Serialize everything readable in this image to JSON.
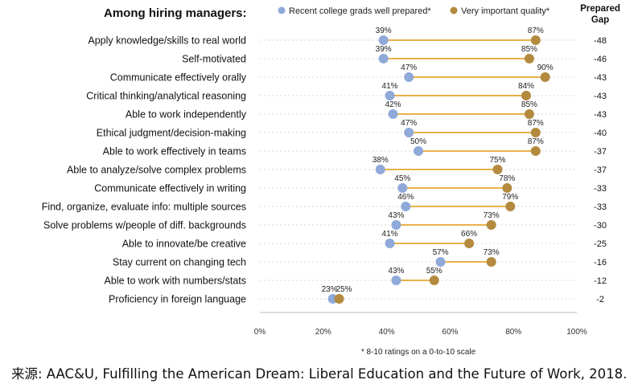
{
  "chart_data": {
    "type": "dumbbell",
    "title": "Among hiring managers:",
    "legend": {
      "prepared": "Recent college grads well prepared*",
      "important": "Very important quality*",
      "placement": "top"
    },
    "gap_header": [
      "Prepared",
      "Gap"
    ],
    "x_ticks": [
      "0%",
      "20%",
      "40%",
      "60%",
      "80%",
      "100%"
    ],
    "xlim": [
      0,
      100
    ],
    "footnote": "* 8-10 ratings on a 0-to-10 scale",
    "colors": {
      "prepared": "#8fa9d9",
      "important": "#b38a3e",
      "line": "#e8b14a",
      "grid": "#c9c9c9"
    },
    "rows": [
      {
        "label": "Apply knowledge/skills to real world",
        "prepared": 39,
        "important": 87,
        "gap": "-48"
      },
      {
        "label": "Self-motivated",
        "prepared": 39,
        "important": 85,
        "gap": "-46"
      },
      {
        "label": "Communicate effectively orally",
        "prepared": 47,
        "important": 90,
        "gap": "-43"
      },
      {
        "label": "Critical thinking/analytical reasoning",
        "prepared": 41,
        "important": 84,
        "gap": "-43"
      },
      {
        "label": "Able to work independently",
        "prepared": 42,
        "important": 85,
        "gap": "-43"
      },
      {
        "label": "Ethical judgment/decision-making",
        "prepared": 47,
        "important": 87,
        "gap": "-40"
      },
      {
        "label": "Able to work effectively in teams",
        "prepared": 50,
        "important": 87,
        "gap": "-37"
      },
      {
        "label": "Able to analyze/solve complex problems",
        "prepared": 38,
        "important": 75,
        "gap": "-37"
      },
      {
        "label": "Communicate effectively in writing",
        "prepared": 45,
        "important": 78,
        "gap": "-33"
      },
      {
        "label": "Find, organize, evaluate info: multiple sources",
        "prepared": 46,
        "important": 79,
        "gap": "-33"
      },
      {
        "label": "Solve problems w/people of diff. backgrounds",
        "prepared": 43,
        "important": 73,
        "gap": "-30"
      },
      {
        "label": "Able to innovate/be creative",
        "prepared": 41,
        "important": 66,
        "gap": "-25"
      },
      {
        "label": "Stay current on changing tech",
        "prepared": 57,
        "important": 73,
        "gap": "-16"
      },
      {
        "label": "Able to work with numbers/stats",
        "prepared": 43,
        "important": 55,
        "gap": "-12"
      },
      {
        "label": "Proficiency in foreign language",
        "prepared": 23,
        "important": 25,
        "gap": "-2"
      }
    ]
  },
  "source": "来源: AAC&U, Fulfilling the American Dream: Liberal Education and the Future of Work, 2018."
}
